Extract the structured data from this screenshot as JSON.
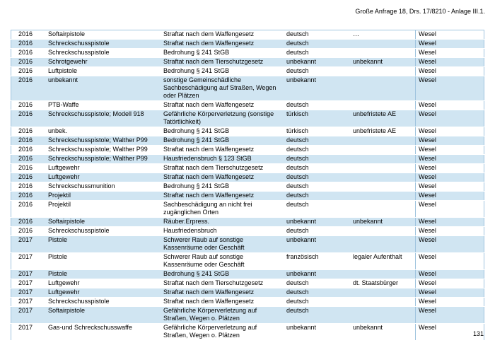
{
  "page": {
    "header": "Große Anfrage 18, Drs. 17/8210 - Anlage III.1.",
    "page_number": "131"
  },
  "colors": {
    "stripe_blue": "#d0e5f2",
    "table_border": "#9fc4de",
    "text": "#000000"
  },
  "table": {
    "columns": [
      "year",
      "weapon",
      "offense",
      "nationality",
      "status",
      "city"
    ],
    "rows": [
      {
        "year": "2016",
        "weapon": "Softairpistole",
        "offense": "Straftat nach dem Waffengesetz",
        "nationality": "deutsch",
        "status": "…",
        "city": "Wesel"
      },
      {
        "year": "2016",
        "weapon": "Schreckschusspistole",
        "offense": "Straftat nach dem Waffengesetz",
        "nationality": "deutsch",
        "status": "",
        "city": "Wesel"
      },
      {
        "year": "2016",
        "weapon": "Schreckschusspistole",
        "offense": "Bedrohung § 241 StGB",
        "nationality": "deutsch",
        "status": "",
        "city": "Wesel"
      },
      {
        "year": "2016",
        "weapon": "Schrotgewehr",
        "offense": "Straftat nach dem Tierschutzgesetz",
        "nationality": "unbekannt",
        "status": "unbekannt",
        "city": "Wesel"
      },
      {
        "year": "2016",
        "weapon": "Luftpistole",
        "offense": "Bedrohung § 241 StGB",
        "nationality": "deutsch",
        "status": "",
        "city": "Wesel"
      },
      {
        "year": "2016",
        "weapon": "unbekannt",
        "offense": "sonstige Gemeinschädliche\nSachbeschädigung auf Straßen, Wegen\noder Plätzen",
        "nationality": "unbekannt",
        "status": "",
        "city": "Wesel"
      },
      {
        "year": "2016",
        "weapon": "PTB-Waffe",
        "offense": "Straftat nach dem Waffengesetz",
        "nationality": "deutsch",
        "status": "",
        "city": "Wesel"
      },
      {
        "year": "2016",
        "weapon": "Schreckschusspistole; Modell 918",
        "offense": "Gefährliche Körperverletzung (sonstige\nTatörtlichkeit)",
        "nationality": "türkisch",
        "status": "unbefristete AE",
        "city": "Wesel"
      },
      {
        "year": "2016",
        "weapon": "unbek.",
        "offense": "Bedrohung § 241 StGB",
        "nationality": "türkisch",
        "status": "unbefristete AE",
        "city": "Wesel"
      },
      {
        "year": "2016",
        "weapon": "Schreckschusspistole; Walther P99",
        "offense": "Bedrohung § 241 StGB",
        "nationality": "deutsch",
        "status": "",
        "city": "Wesel"
      },
      {
        "year": "2016",
        "weapon": "Schreckschusspistole; Walther P99",
        "offense": "Straftat nach dem Waffengesetz",
        "nationality": "deutsch",
        "status": "",
        "city": "Wesel"
      },
      {
        "year": "2016",
        "weapon": "Schreckschusspistole; Walther P99",
        "offense": "Hausfriedensbruch § 123 StGB",
        "nationality": "deutsch",
        "status": "",
        "city": "Wesel"
      },
      {
        "year": "2016",
        "weapon": "Luftgewehr",
        "offense": "Straftat nach dem Tierschutzgesetz",
        "nationality": "deutsch",
        "status": "",
        "city": "Wesel"
      },
      {
        "year": "2016",
        "weapon": "Luftgewehr",
        "offense": "Straftat nach dem Waffengesetz",
        "nationality": "deutsch",
        "status": "",
        "city": "Wesel"
      },
      {
        "year": "2016",
        "weapon": "Schreckschussmunition",
        "offense": "Bedrohung § 241 StGB",
        "nationality": "deutsch",
        "status": "",
        "city": "Wesel"
      },
      {
        "year": "2016",
        "weapon": "Projektil",
        "offense": "Straftat nach dem Waffengesetz",
        "nationality": "deutsch",
        "status": "",
        "city": "Wesel"
      },
      {
        "year": "2016",
        "weapon": "Projektil",
        "offense": "Sachbeschädigung an nicht frei\nzugänglichen Orten",
        "nationality": "deutsch",
        "status": "",
        "city": "Wesel"
      },
      {
        "year": "2016",
        "weapon": "Softairpistole",
        "offense": "Räuber.Erpress.",
        "nationality": "unbekannt",
        "status": "unbekannt",
        "city": "Wesel"
      },
      {
        "year": "2016",
        "weapon": "Schreckschusspistole",
        "offense": "Hausfriedensbruch",
        "nationality": "deutsch",
        "status": "",
        "city": "Wesel"
      },
      {
        "year": "2017",
        "weapon": "Pistole",
        "offense": "Schwerer Raub auf sonstige\nKassenräume oder Geschäft",
        "nationality": "unbekannt",
        "status": "",
        "city": "Wesel"
      },
      {
        "year": "2017",
        "weapon": "Pistole",
        "offense": "Schwerer Raub auf sonstige\nKassenräume oder Geschäft",
        "nationality": "französisch",
        "status": "legaler Aufenthalt",
        "city": "Wesel"
      },
      {
        "year": "2017",
        "weapon": "Pistole",
        "offense": "Bedrohung § 241 StGB",
        "nationality": "unbekannt",
        "status": "",
        "city": "Wesel"
      },
      {
        "year": "2017",
        "weapon": "Luftgewehr",
        "offense": "Straftat nach dem Tierschutzgesetz",
        "nationality": "deutsch",
        "status": "dt. Staatsbürger",
        "city": "Wesel"
      },
      {
        "year": "2017",
        "weapon": "Luftgewehr",
        "offense": "Straftat nach dem Waffengesetz",
        "nationality": "deutsch",
        "status": "",
        "city": "Wesel"
      },
      {
        "year": "2017",
        "weapon": "Schreckschusspistole",
        "offense": "Straftat nach dem Waffengesetz",
        "nationality": "deutsch",
        "status": "",
        "city": "Wesel"
      },
      {
        "year": "2017",
        "weapon": "Softairpistole",
        "offense": "Gefährliche Körperverletzung auf\nStraßen, Wegen o. Plätzen",
        "nationality": "deutsch",
        "status": "",
        "city": "Wesel"
      },
      {
        "year": "2017",
        "weapon": "Gas-und Schreckschusswaffe",
        "offense": "Gefährliche Körperverletzung auf\nStraßen, Wegen o. Plätzen",
        "nationality": "unbekannt",
        "status": "unbekannt",
        "city": "Wesel"
      }
    ]
  }
}
